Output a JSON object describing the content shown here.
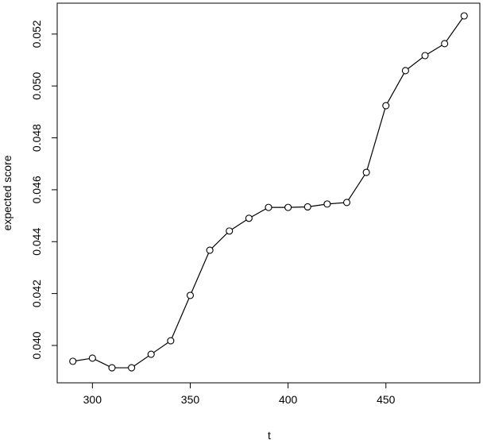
{
  "chart_data": {
    "type": "line",
    "x_label": "t",
    "y_label": "expected score",
    "x": [
      290,
      300,
      310,
      320,
      330,
      340,
      350,
      360,
      370,
      380,
      390,
      400,
      410,
      420,
      430,
      440,
      450,
      460,
      470,
      480,
      490
    ],
    "values": [
      0.03939,
      0.03951,
      0.03914,
      0.03914,
      0.03966,
      0.04018,
      0.04193,
      0.04367,
      0.04441,
      0.0449,
      0.04532,
      0.04532,
      0.04534,
      0.04545,
      0.04551,
      0.04667,
      0.04924,
      0.05059,
      0.05117,
      0.05163,
      0.0527
    ],
    "color": "#000000",
    "xlim": [
      282,
      498
    ],
    "ylim": [
      0.03856,
      0.05319
    ],
    "xticks": [
      300,
      350,
      400,
      450
    ],
    "yticks": [
      {
        "value": 0.04,
        "label": "0.040"
      },
      0.042,
      0.044,
      0.046,
      0.048,
      {
        "value": 0.05,
        "label": "0.050"
      },
      0.052
    ],
    "markers": true
  }
}
